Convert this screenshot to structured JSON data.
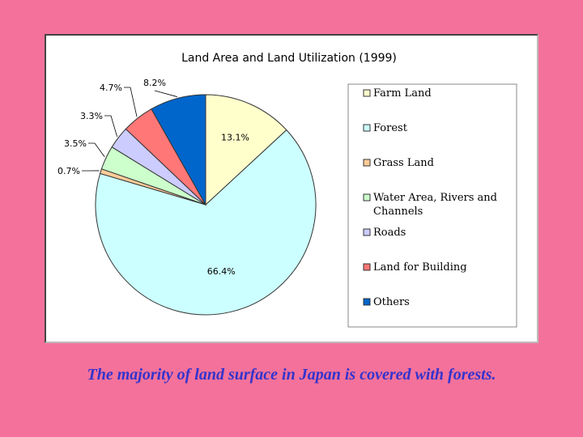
{
  "chart_data": {
    "type": "pie",
    "title": "Land Area and Land Utilization (1999)",
    "categories": [
      "Farm Land",
      "Forest",
      "Grass Land",
      "Water Area, Rivers and Channels",
      "Roads",
      "Land for Building",
      "Others"
    ],
    "values": [
      13.1,
      66.4,
      0.7,
      3.5,
      3.3,
      4.7,
      8.2
    ],
    "value_labels": [
      "13.1%",
      "66.4%",
      "0.7%",
      "3.5%",
      "3.3%",
      "4.7%",
      "8.2%"
    ],
    "colors": [
      "#ffffcc",
      "#ccffff",
      "#ffcc99",
      "#ccffcc",
      "#ccccff",
      "#ff7777",
      "#0066cc"
    ],
    "start_angle": "12 o'clock",
    "direction": "clockwise",
    "legend_position": "right"
  },
  "caption": "The majority of land surface in Japan is covered with forests."
}
